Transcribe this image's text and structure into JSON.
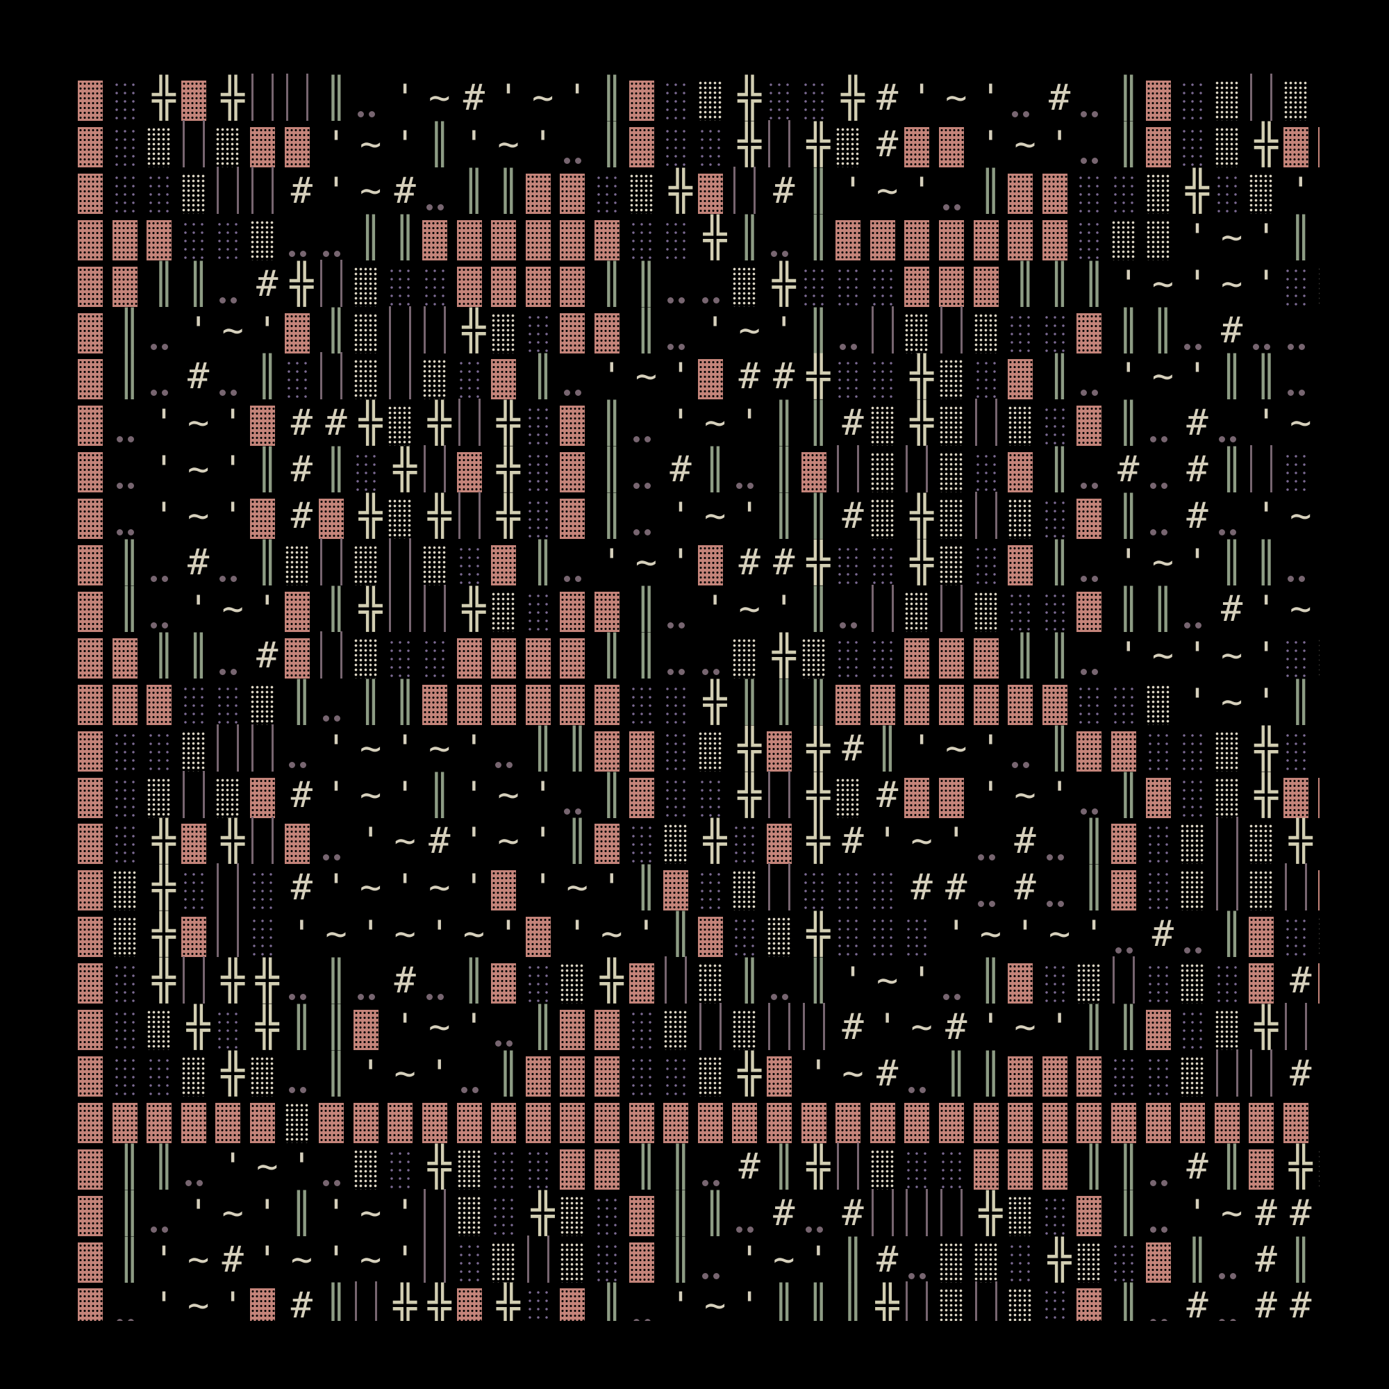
{
  "palette": {
    "block": "#c4847a",
    "sparse": "#7b6a92",
    "medium": "#ddd6c4",
    "cross": "#d2ceb2",
    "double_bar": "#8d9c84",
    "bars": "#776570",
    "text": "#d6d0bc",
    "background": "#000000"
  },
  "glyphs": {
    "B": "▓",
    "P": "░",
    "M": "▒",
    "X": "╬",
    "G": "║",
    "L": "| |",
    ".": "..",
    "#": "#",
    "~": "~",
    "'": "'"
  },
  "grid": {
    "rows": [
      "BPXBXLLG.'~#'~'GBPMXPPX#'~'.#.GBPMLMXB.BG'~'",
      "BPMLMBB'~'G'~'.GBPPXLXM#BB'~'.GBPMXBBXG'~#'~'",
      "BPPMLL#'~#.GGBBPMXBL#G'~'.GBBPPMXPM'~'B'~'.",
      "BBBPPM..GGBBBBBBPPXG.GBBBBBBBPMM'~'GGBB",
      "BBGG.#XLMPPBBBBGG..MXPPPBBBGGG'~'~'PMPPB",
      "BG.'~'BGMLLXMPBBG.'~'G.LMLMPPBGG.#..PPXMP",
      "BG.#.GPLMLMPBG.'~'B##XPPXMPBG.'~'GG.XLBXP",
      "B.'~'B##XMXLXPBG.'~'GG#MXMLMPBG.#.'~'.XPPXP",
      "B.'~'G#GPXLBXPBG.#G.GBLMLMPBG.#.#GLPPLP",
      "B.'~'B#BXMXLXPBG.'~'GG#MXMLMPBG.#.'~'.XPPXP",
      "BG.#.GMLMLMPBG.'~'B##XPPXMPBG.'~'GG.XLBXP",
      "BG.'~'BGXLLXMPBBG.'~'G.LMLMPPBGG.#'~'.PPXMP",
      "BBGG.#BLMPPBBBBGG..MXMPPBBBGG.'~'~'PMPPB",
      "BBBPPMG.GGBBBBBBPPXGGGBBBBBBBPPM'~'GGBB",
      "BPPMLL.'~'~'.GGBBPMXBX#G'~'.GBBPPMXPP'~#'~'.",
      "BPMLMB#'~'G'~'.GBPPXLXM#BB'~'.GBPMXBBXG'~#..",
      "BPXBXLB.'~#'~'GBPMXPBX#'~'.#.GBPMLMXL.BG'~'",
      "BMXPLP#'~'~'B'~'GBPMLPPP##.#.GBPMLMLB#GG'~'",
      "BMXBLP'~'~'~'B'~'GBPMXPPP'~'~'.#.GBPMLMLLL#GG'~'",
      "BPXLXX.G.#.GBPMXBLMG.G'~'.GBPMLPMPB#B'~'",
      "BPMXPXGGB'~'.GBBPMLMLL#'~#'~'GGBPMXLLM'~'.#.",
      "BPPMXM.G'~'.GBBBPPMXB'~#.GGBBBPPMLL#'~'.G",
      "BBBBBBMBBBBBBBBBBBBBBBBBBBBBBBBBBBBB",
      "BGG.'~'.MPXMPPBBGG.#GXLMPPBBBGG.#GBXMPP",
      "BG.'~'G'~'LMPXMPBGG.#.#LLLXMPBG.'~##'~'LMLMP",
      "BG'~#'~'~'LPMLMPBG.'~'G#.MMPXMPBG.#G..BLBXP",
      "B.'~'B#GLXXBXPBG.'~'GGGXLMLMPBG.#.##LPPXP"
    ]
  }
}
